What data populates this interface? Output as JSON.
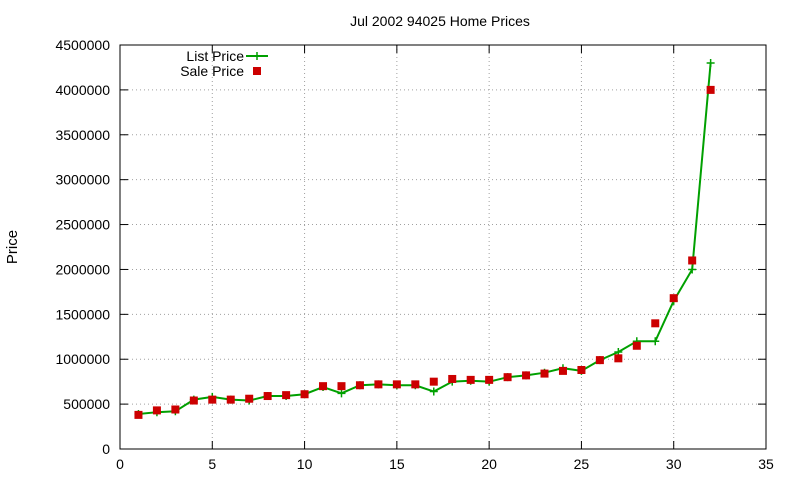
{
  "chart_data": {
    "type": "line",
    "title": "Jul 2002 94025 Home Prices",
    "xlabel": "",
    "ylabel": "Price",
    "xlim": [
      0,
      35
    ],
    "ylim": [
      0,
      4500000
    ],
    "xticks": [
      "0",
      "5",
      "10",
      "15",
      "20",
      "25",
      "30",
      "35"
    ],
    "yticks": [
      "0",
      "500000",
      "1000000",
      "1500000",
      "2000000",
      "2500000",
      "3000000",
      "3500000",
      "4000000",
      "4500000"
    ],
    "grid": true,
    "legend_position": "top-left",
    "x": [
      1,
      2,
      3,
      4,
      5,
      6,
      7,
      8,
      9,
      10,
      11,
      12,
      13,
      14,
      15,
      16,
      17,
      18,
      19,
      20,
      21,
      22,
      23,
      24,
      25,
      26,
      27,
      28,
      29,
      30,
      31,
      32
    ],
    "series": [
      {
        "name": "List Price",
        "style": "line with plus markers",
        "color": "#00a000",
        "values": [
          390000,
          410000,
          420000,
          550000,
          580000,
          550000,
          540000,
          590000,
          590000,
          610000,
          690000,
          620000,
          710000,
          720000,
          710000,
          710000,
          640000,
          750000,
          760000,
          750000,
          800000,
          820000,
          850000,
          900000,
          870000,
          990000,
          1080000,
          1200000,
          1200000,
          1650000,
          2000000,
          4300000
        ]
      },
      {
        "name": "Sale Price",
        "style": "square markers",
        "color": "#cc0000",
        "values": [
          380000,
          430000,
          440000,
          540000,
          550000,
          550000,
          560000,
          590000,
          600000,
          610000,
          700000,
          700000,
          710000,
          720000,
          720000,
          720000,
          750000,
          780000,
          770000,
          770000,
          800000,
          820000,
          840000,
          870000,
          880000,
          990000,
          1010000,
          1150000,
          1400000,
          1680000,
          2100000,
          4000000
        ]
      }
    ]
  }
}
